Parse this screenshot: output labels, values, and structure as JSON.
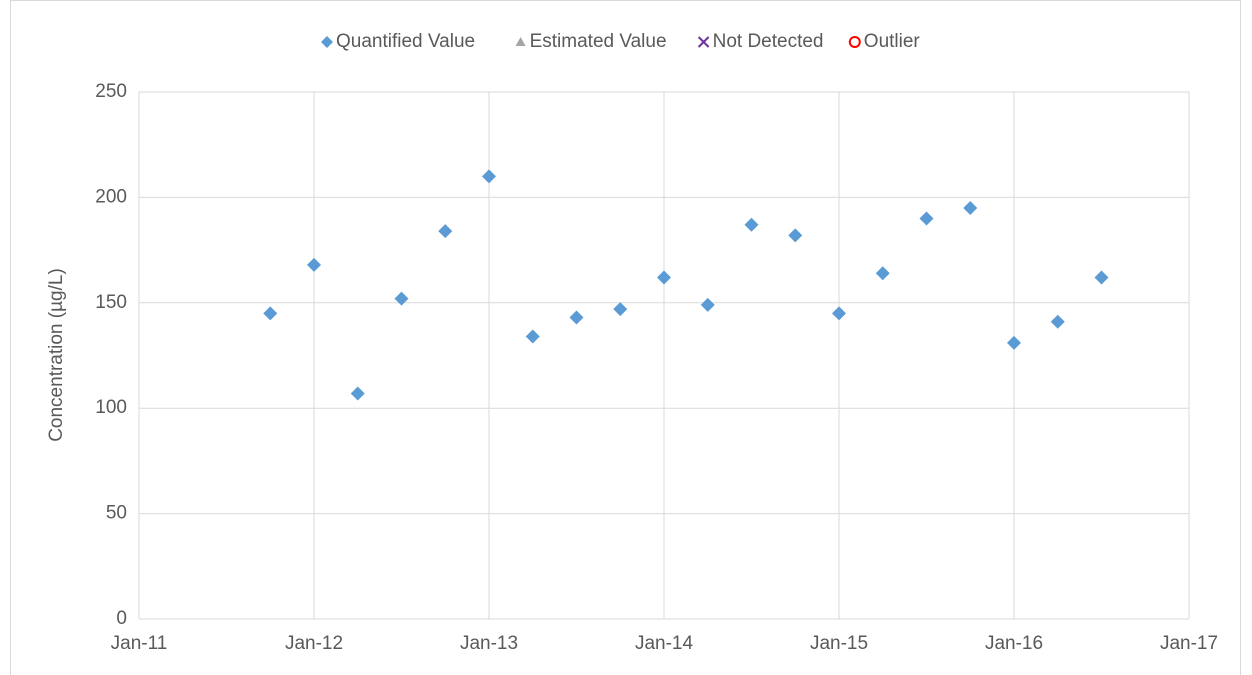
{
  "chart_data": {
    "type": "scatter",
    "y_label": "Concentration (µg/L)",
    "legend": "top",
    "grid": true,
    "xlim": [
      "2011-01",
      "2017-01"
    ],
    "xticks": [
      {
        "value": "2011-01",
        "label": "Jan-11"
      },
      {
        "value": "2012-01",
        "label": "Jan-12"
      },
      {
        "value": "2013-01",
        "label": "Jan-13"
      },
      {
        "value": "2014-01",
        "label": "Jan-14"
      },
      {
        "value": "2015-01",
        "label": "Jan-15"
      },
      {
        "value": "2016-01",
        "label": "Jan-16"
      },
      {
        "value": "2017-01",
        "label": "Jan-17"
      }
    ],
    "ylim": [
      0,
      250
    ],
    "yticks": [
      0,
      50,
      100,
      150,
      200,
      250
    ],
    "series": [
      {
        "name": "Quantified Value",
        "color": "#5b9bd5",
        "marker": "diamond",
        "x": [
          "2011-10",
          "2012-01",
          "2012-04",
          "2012-07",
          "2012-10",
          "2013-01",
          "2013-04",
          "2013-07",
          "2013-10",
          "2014-01",
          "2014-04",
          "2014-07",
          "2014-10",
          "2015-01",
          "2015-04",
          "2015-07",
          "2015-10",
          "2016-01",
          "2016-04",
          "2016-07"
        ],
        "values": [
          145,
          168,
          107,
          152,
          184,
          210,
          134,
          143,
          147,
          162,
          149,
          187,
          182,
          145,
          164,
          190,
          195,
          131,
          141,
          162
        ]
      },
      {
        "name": "Estimated Value",
        "color": "#a5a5a5",
        "marker": "triangle",
        "x": [],
        "values": []
      },
      {
        "name": "Not Detected",
        "color": "#7030a0",
        "marker": "x",
        "x": [],
        "values": []
      },
      {
        "name": "Outlier",
        "color": "#ff0000",
        "marker": "circle",
        "x": [],
        "values": []
      }
    ]
  }
}
